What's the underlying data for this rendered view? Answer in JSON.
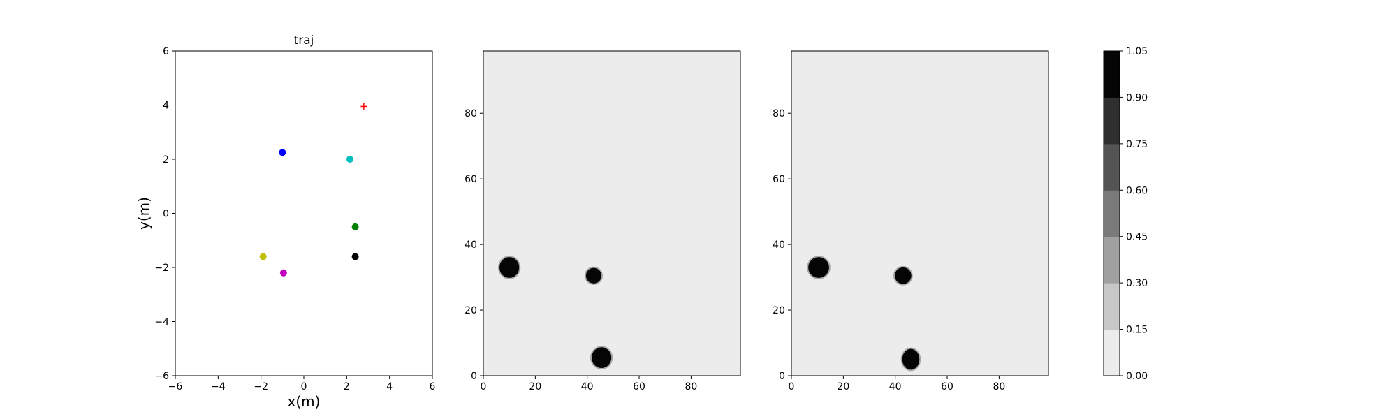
{
  "chart_data": [
    {
      "type": "scatter",
      "title": "traj",
      "xlabel": "x(m)",
      "ylabel": "y(m)",
      "xlim": [
        -6,
        6
      ],
      "ylim": [
        -6,
        6
      ],
      "xticks": [
        "−6",
        "−4",
        "−2",
        "0",
        "2",
        "4",
        "6"
      ],
      "yticks": [
        "−6",
        "−4",
        "−2",
        "0",
        "2",
        "4",
        "6"
      ],
      "grid": false,
      "points": [
        {
          "x": -1.0,
          "y": 2.25,
          "color": "#0000ff",
          "marker": "circle"
        },
        {
          "x": 2.15,
          "y": 2.0,
          "color": "#00bfbf",
          "marker": "circle"
        },
        {
          "x": 2.4,
          "y": -0.5,
          "color": "#008000",
          "marker": "circle"
        },
        {
          "x": 2.4,
          "y": -1.6,
          "color": "#000000",
          "marker": "circle"
        },
        {
          "x": -1.9,
          "y": -1.6,
          "color": "#bfbf00",
          "marker": "circle"
        },
        {
          "x": -0.95,
          "y": -2.2,
          "color": "#bf00bf",
          "marker": "circle"
        },
        {
          "x": 2.8,
          "y": 3.95,
          "color": "#ff0000",
          "marker": "plus"
        }
      ]
    },
    {
      "type": "heatmap",
      "title": "",
      "xlim": [
        0,
        99
      ],
      "ylim": [
        0,
        99
      ],
      "xticks": [
        "0",
        "20",
        "40",
        "60",
        "80"
      ],
      "yticks": [
        "0",
        "20",
        "40",
        "60",
        "80"
      ],
      "background_value": 0.07,
      "blobs": [
        {
          "cx": 10,
          "cy": 33,
          "rx": 3.8,
          "ry": 4.0,
          "value": 1.0
        },
        {
          "cx": 42.5,
          "cy": 30.5,
          "rx": 3.0,
          "ry": 3.0,
          "value": 1.0
        },
        {
          "cx": 45.5,
          "cy": 5.5,
          "rx": 3.8,
          "ry": 4.0,
          "value": 1.0
        }
      ]
    },
    {
      "type": "heatmap",
      "title": "",
      "xlim": [
        0,
        99
      ],
      "ylim": [
        0,
        99
      ],
      "xticks": [
        "0",
        "20",
        "40",
        "60",
        "80"
      ],
      "yticks": [
        "0",
        "20",
        "40",
        "60",
        "80"
      ],
      "background_value": 0.07,
      "blobs": [
        {
          "cx": 10.5,
          "cy": 33,
          "rx": 4.0,
          "ry": 4.0,
          "value": 1.0
        },
        {
          "cx": 43,
          "cy": 30.5,
          "rx": 3.2,
          "ry": 3.2,
          "value": 1.0
        },
        {
          "cx": 46,
          "cy": 5,
          "rx": 3.3,
          "ry": 4.0,
          "value": 1.0
        }
      ]
    }
  ],
  "colorbar": {
    "ticks": [
      "0.00",
      "0.15",
      "0.30",
      "0.45",
      "0.60",
      "0.75",
      "0.90",
      "1.05"
    ],
    "levels": [
      0.0,
      0.15,
      0.3,
      0.45,
      0.6,
      0.75,
      0.9,
      1.05
    ],
    "colors": [
      "#ececec",
      "#c7c7c7",
      "#a0a0a0",
      "#7a7a7a",
      "#545454",
      "#2f2f2f",
      "#050505"
    ]
  }
}
